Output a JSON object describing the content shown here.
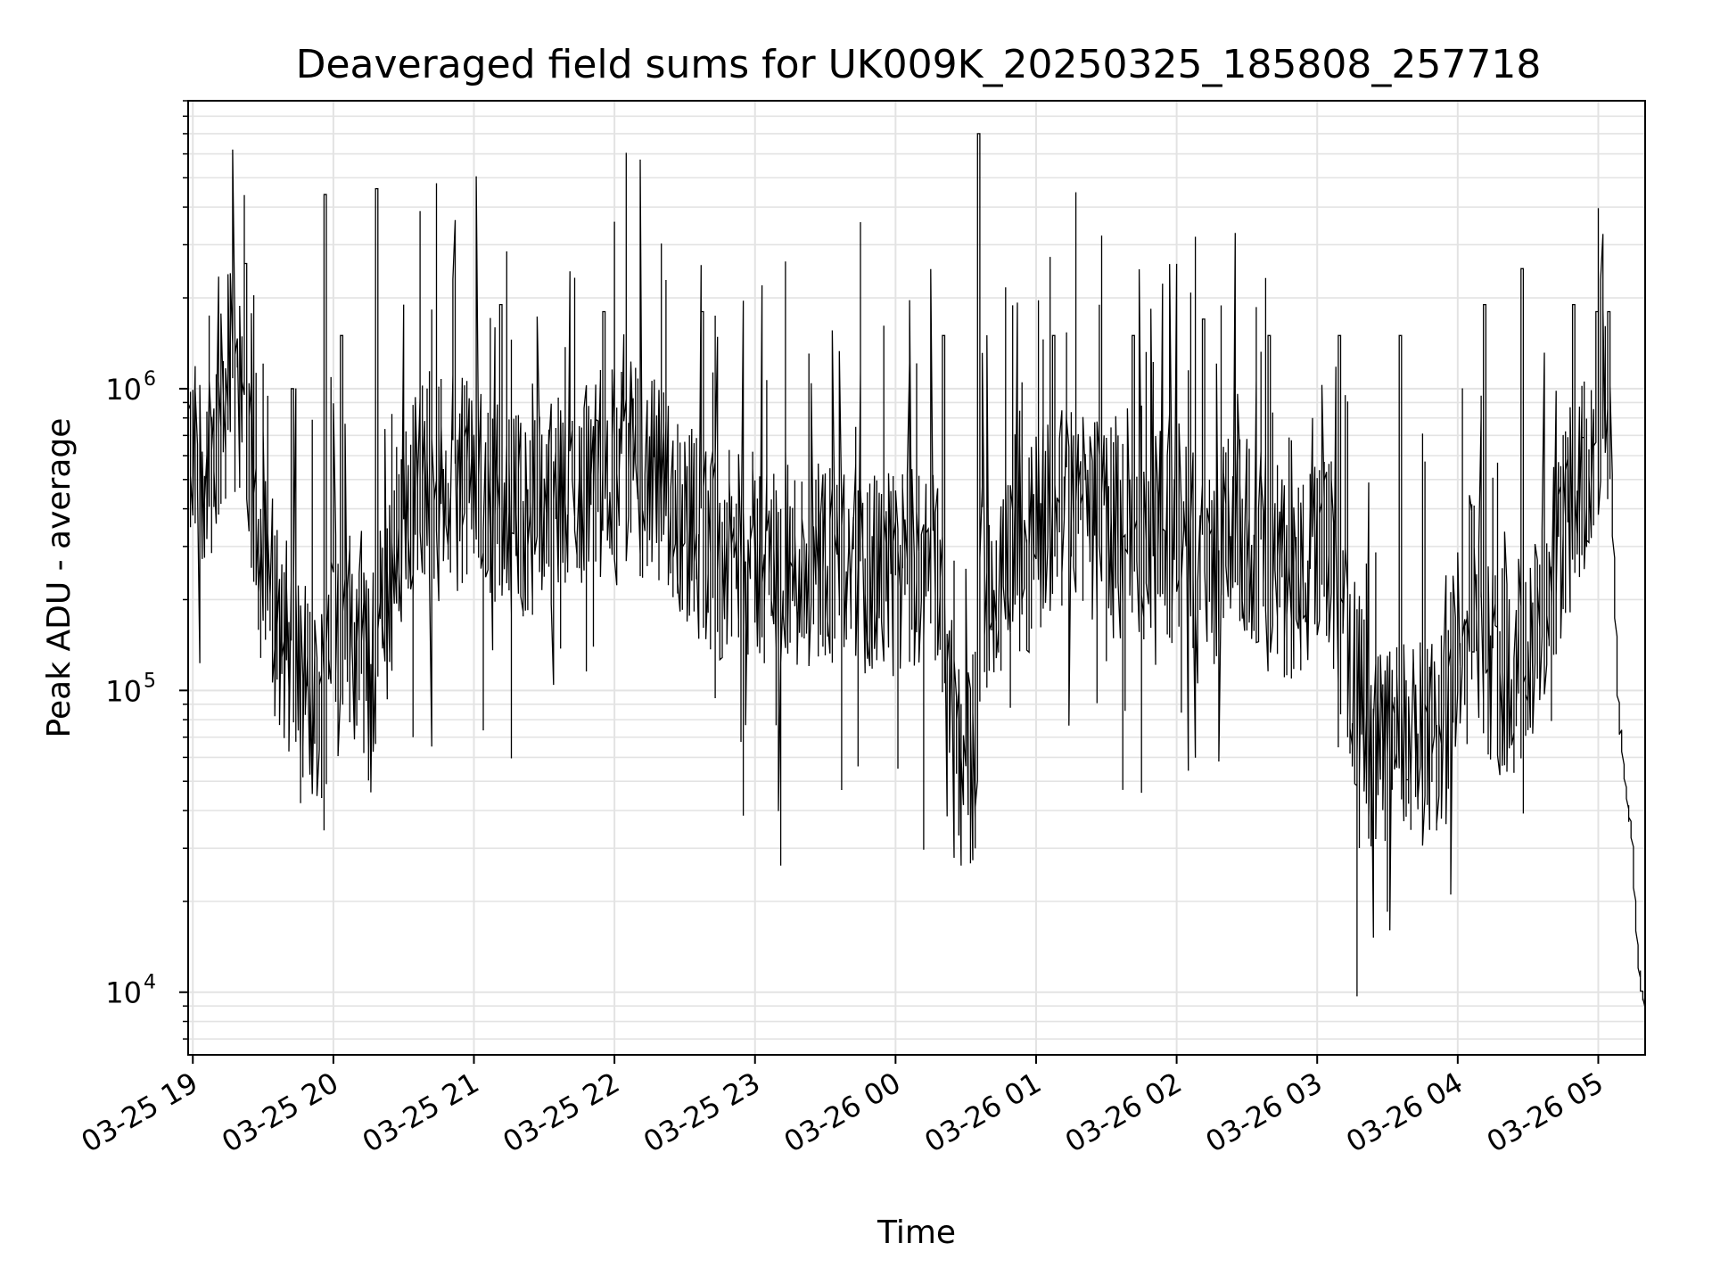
{
  "chart_data": {
    "type": "line",
    "title": "Deaveraged field sums for UK009K_20250325_185808_257718",
    "xlabel": "Time",
    "ylabel": "Peak ADU - average",
    "yscale": "log",
    "ylim": [
      6200,
      9000000
    ],
    "xlim": [
      "2025-03-25 18:58",
      "2025-03-26 05:20"
    ],
    "grid": true,
    "line_color": "#000000",
    "y_ticks": [
      {
        "value": 10000,
        "base": "10",
        "exp": "4"
      },
      {
        "value": 100000,
        "base": "10",
        "exp": "5"
      },
      {
        "value": 1000000,
        "base": "10",
        "exp": "6"
      }
    ],
    "x_ticks": [
      {
        "value": "2025-03-25 19:00",
        "label": "03-25 19"
      },
      {
        "value": "2025-03-25 20:00",
        "label": "03-25 20"
      },
      {
        "value": "2025-03-25 21:00",
        "label": "03-25 21"
      },
      {
        "value": "2025-03-25 22:00",
        "label": "03-25 22"
      },
      {
        "value": "2025-03-25 23:00",
        "label": "03-25 23"
      },
      {
        "value": "2025-03-26 00:00",
        "label": "03-26 00"
      },
      {
        "value": "2025-03-26 01:00",
        "label": "03-26 01"
      },
      {
        "value": "2025-03-26 02:00",
        "label": "03-26 02"
      },
      {
        "value": "2025-03-26 03:00",
        "label": "03-26 03"
      },
      {
        "value": "2025-03-26 04:00",
        "label": "03-26 04"
      },
      {
        "value": "2025-03-26 05:00",
        "label": "03-26 05"
      }
    ],
    "series": [
      {
        "x": [
          "2025-03-25 18:58",
          "2025-03-25 19:05",
          "2025-03-25 19:10",
          "2025-03-25 19:14",
          "2025-03-25 19:17",
          "2025-03-25 19:19",
          "2025-03-25 19:21",
          "2025-03-25 19:24",
          "2025-03-25 19:27",
          "2025-03-25 19:31",
          "2025-03-25 19:36",
          "2025-03-25 19:41",
          "2025-03-25 19:46",
          "2025-03-25 19:48",
          "2025-03-25 19:50",
          "2025-03-25 19:52",
          "2025-03-25 19:55",
          "2025-03-25 19:59",
          "2025-03-25 20:04",
          "2025-03-25 20:09",
          "2025-03-25 20:14",
          "2025-03-25 20:16",
          "2025-03-25 20:18",
          "2025-03-25 20:22",
          "2025-03-25 20:27",
          "2025-03-25 20:32",
          "2025-03-25 20:40",
          "2025-03-25 20:50",
          "2025-03-25 21:00",
          "2025-03-25 21:10",
          "2025-03-25 21:20",
          "2025-03-25 21:30",
          "2025-03-25 21:40",
          "2025-03-25 21:50",
          "2025-03-25 22:05",
          "2025-03-25 22:15",
          "2025-03-25 22:25",
          "2025-03-25 22:35",
          "2025-03-25 22:45",
          "2025-03-25 23:00",
          "2025-03-25 23:15",
          "2025-03-25 23:30",
          "2025-03-25 23:45",
          "2025-03-25 23:55",
          "2025-03-26 00:05",
          "2025-03-26 00:15",
          "2025-03-26 00:20",
          "2025-03-26 00:25",
          "2025-03-26 00:30",
          "2025-03-26 00:33",
          "2025-03-26 00:35",
          "2025-03-26 00:37",
          "2025-03-26 00:40",
          "2025-03-26 00:45",
          "2025-03-26 00:50",
          "2025-03-26 00:55",
          "2025-03-26 01:05",
          "2025-03-26 01:15",
          "2025-03-26 01:25",
          "2025-03-26 01:35",
          "2025-03-26 01:45",
          "2025-03-26 01:55",
          "2025-03-26 02:05",
          "2025-03-26 02:15",
          "2025-03-26 02:25",
          "2025-03-26 02:35",
          "2025-03-26 02:45",
          "2025-03-26 02:55",
          "2025-03-26 03:05",
          "2025-03-26 03:15",
          "2025-03-26 03:25",
          "2025-03-26 03:35",
          "2025-03-26 03:45",
          "2025-03-26 03:55",
          "2025-03-26 04:05",
          "2025-03-26 04:15",
          "2025-03-26 04:25",
          "2025-03-26 04:35",
          "2025-03-26 04:45",
          "2025-03-26 04:55",
          "2025-03-26 05:00",
          "2025-03-26 05:03",
          "2025-03-26 05:06",
          "2025-03-26 05:09",
          "2025-03-26 05:12",
          "2025-03-26 05:15",
          "2025-03-26 05:17",
          "2025-03-26 05:19",
          "2025-03-26 05:20"
        ],
        "y": [
          520000,
          600000,
          650000,
          900000,
          1100000,
          800000,
          1000000,
          600000,
          350000,
          250000,
          180000,
          140000,
          110000,
          120000,
          95000,
          85000,
          90000,
          180000,
          200000,
          150000,
          120000,
          100000,
          130000,
          180000,
          300000,
          420000,
          520000,
          500000,
          480000,
          430000,
          380000,
          400000,
          450000,
          500000,
          600000,
          500000,
          420000,
          330000,
          280000,
          280000,
          250000,
          280000,
          260000,
          230000,
          250000,
          260000,
          240000,
          60000,
          55000,
          60000,
          65000,
          240000,
          250000,
          200000,
          350000,
          280000,
          380000,
          420000,
          380000,
          320000,
          300000,
          330000,
          300000,
          260000,
          330000,
          300000,
          250000,
          230000,
          300000,
          120000,
          60000,
          70000,
          65000,
          70000,
          240000,
          120000,
          110000,
          150000,
          350000,
          500000,
          700000,
          1000000,
          500000,
          90000,
          50000,
          30000,
          15000,
          10000,
          9000
        ]
      }
    ],
    "spikes": {
      "x": [
        "2025-03-25 19:23",
        "2025-03-25 19:43",
        "2025-03-25 19:57",
        "2025-03-25 20:04",
        "2025-03-25 20:19",
        "2025-03-25 20:30",
        "2025-03-25 21:12",
        "2025-03-25 21:56",
        "2025-03-25 22:38",
        "2025-03-26 00:21",
        "2025-03-26 00:36",
        "2025-03-26 01:08",
        "2025-03-26 01:42",
        "2025-03-26 02:12",
        "2025-03-26 02:40",
        "2025-03-26 03:10",
        "2025-03-26 03:36",
        "2025-03-26 04:12",
        "2025-03-26 04:28",
        "2025-03-26 04:50",
        "2025-03-26 05:00",
        "2025-03-26 05:02",
        "2025-03-26 05:05"
      ],
      "y": [
        2600000,
        1000000,
        4400000,
        1500000,
        4600000,
        1900000,
        1900000,
        1800000,
        1800000,
        1500000,
        7000000,
        1500000,
        1500000,
        1700000,
        1500000,
        1500000,
        1500000,
        1900000,
        2500000,
        1900000,
        1800000,
        2300000,
        1800000
      ]
    }
  }
}
